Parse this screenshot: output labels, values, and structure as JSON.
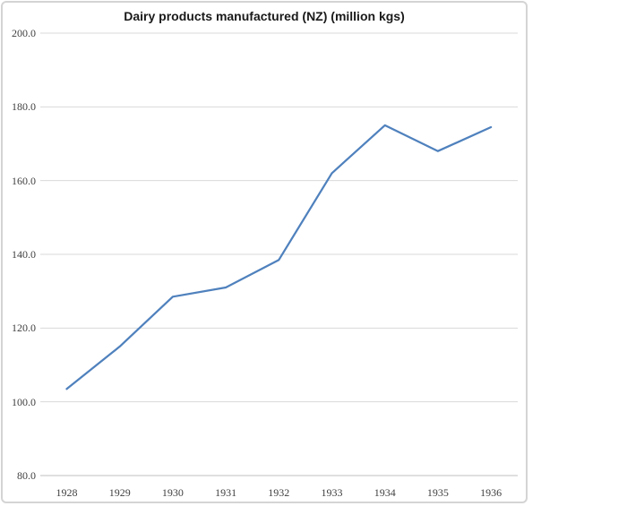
{
  "chart_data": {
    "type": "line",
    "title": "Dairy products manufactured (NZ) (million kgs)",
    "categories": [
      "1928",
      "1929",
      "1930",
      "1931",
      "1932",
      "1933",
      "1934",
      "1935",
      "1936"
    ],
    "values": [
      103.5,
      115.0,
      128.5,
      131.0,
      138.5,
      162.0,
      175.0,
      168.0,
      174.5
    ],
    "xlabel": "",
    "ylabel": "",
    "ylim": [
      80.0,
      200.0
    ],
    "ytick_step": 20,
    "ytick_decimals": 1,
    "grid": true,
    "legend": "none",
    "colors": {
      "line": "#4f81bd",
      "gridline": "#d9d9d9",
      "axis_line": "#bfbfbf",
      "tick_text": "#404040",
      "title_text": "#1a1a1a",
      "frame_border": "#d4d4d4",
      "background": "#ffffff"
    }
  }
}
